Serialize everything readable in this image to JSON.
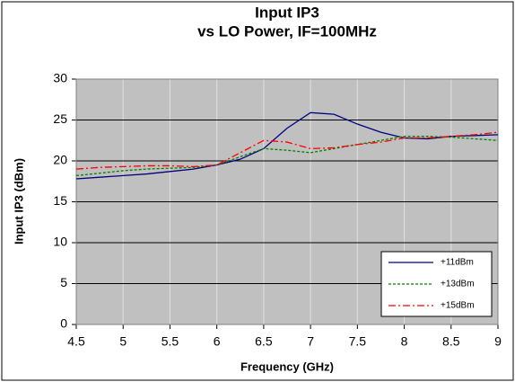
{
  "chart_data": {
    "type": "line",
    "title": "Input IP3",
    "subtitle": "vs LO Power, IF=100MHz",
    "x_label": "Frequency (GHz)",
    "y_label": "Input IP3 (dBm)",
    "x": [
      4.5,
      4.75,
      5,
      5.25,
      5.5,
      5.75,
      6,
      6.25,
      6.5,
      6.75,
      7,
      7.25,
      7.5,
      7.75,
      8,
      8.25,
      8.5,
      8.75,
      9
    ],
    "series": [
      {
        "name": "+11dBm",
        "color": "#000080",
        "dash": "none",
        "values": [
          17.8,
          18.0,
          18.2,
          18.4,
          18.7,
          19.0,
          19.5,
          20.2,
          21.5,
          24.0,
          25.9,
          25.7,
          24.5,
          23.5,
          22.8,
          22.7,
          23.0,
          23.1,
          23.2
        ]
      },
      {
        "name": "+13dBm",
        "color": "#008000",
        "dash": "3 2",
        "values": [
          18.2,
          18.5,
          18.8,
          19.0,
          19.1,
          19.2,
          19.5,
          20.5,
          21.5,
          21.3,
          21.0,
          21.5,
          22.0,
          22.5,
          23.0,
          23.0,
          22.9,
          22.7,
          22.5
        ]
      },
      {
        "name": "+15dBm",
        "color": "#ff0000",
        "dash": "8 3 2 3",
        "values": [
          19.0,
          19.2,
          19.3,
          19.4,
          19.4,
          19.3,
          19.5,
          21.0,
          22.5,
          22.3,
          21.5,
          21.6,
          22.0,
          22.3,
          22.8,
          22.8,
          23.0,
          23.2,
          23.5
        ]
      }
    ],
    "xlim": [
      4.5,
      9
    ],
    "xticks": [
      4.5,
      5,
      5.5,
      6,
      6.5,
      7,
      7.5,
      8,
      8.5,
      9
    ],
    "ylim": [
      0,
      30
    ],
    "yticks": [
      0,
      5,
      10,
      15,
      20,
      25,
      30
    ],
    "grid": true,
    "plot_background": "#c0c0c0",
    "legend": "lower right"
  }
}
